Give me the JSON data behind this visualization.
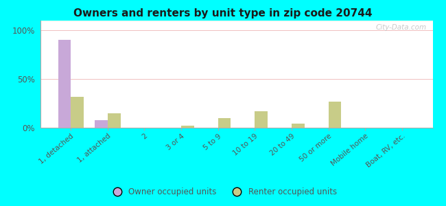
{
  "title": "Owners and renters by unit type in zip code 20744",
  "categories": [
    "1, detached",
    "1, attached",
    "2",
    "3 or 4",
    "5 to 9",
    "10 to 19",
    "20 to 49",
    "50 or more",
    "Mobile home",
    "Boat, RV, etc."
  ],
  "owner_values": [
    90,
    8,
    0,
    0,
    0,
    0,
    0,
    0,
    0,
    0
  ],
  "renter_values": [
    32,
    15,
    0,
    2,
    10,
    17,
    4,
    27,
    0,
    0
  ],
  "owner_color": "#c8a8d8",
  "renter_color": "#c8cc88",
  "yticks": [
    0,
    50,
    100
  ],
  "ytick_labels": [
    "0%",
    "50%",
    "100%"
  ],
  "ylim": [
    0,
    110
  ],
  "background_color": "#00ffff",
  "grid_color": "#f0c0c0",
  "bar_width": 0.35,
  "legend_owner": "Owner occupied units",
  "legend_renter": "Renter occupied units",
  "watermark": "City-Data.com"
}
